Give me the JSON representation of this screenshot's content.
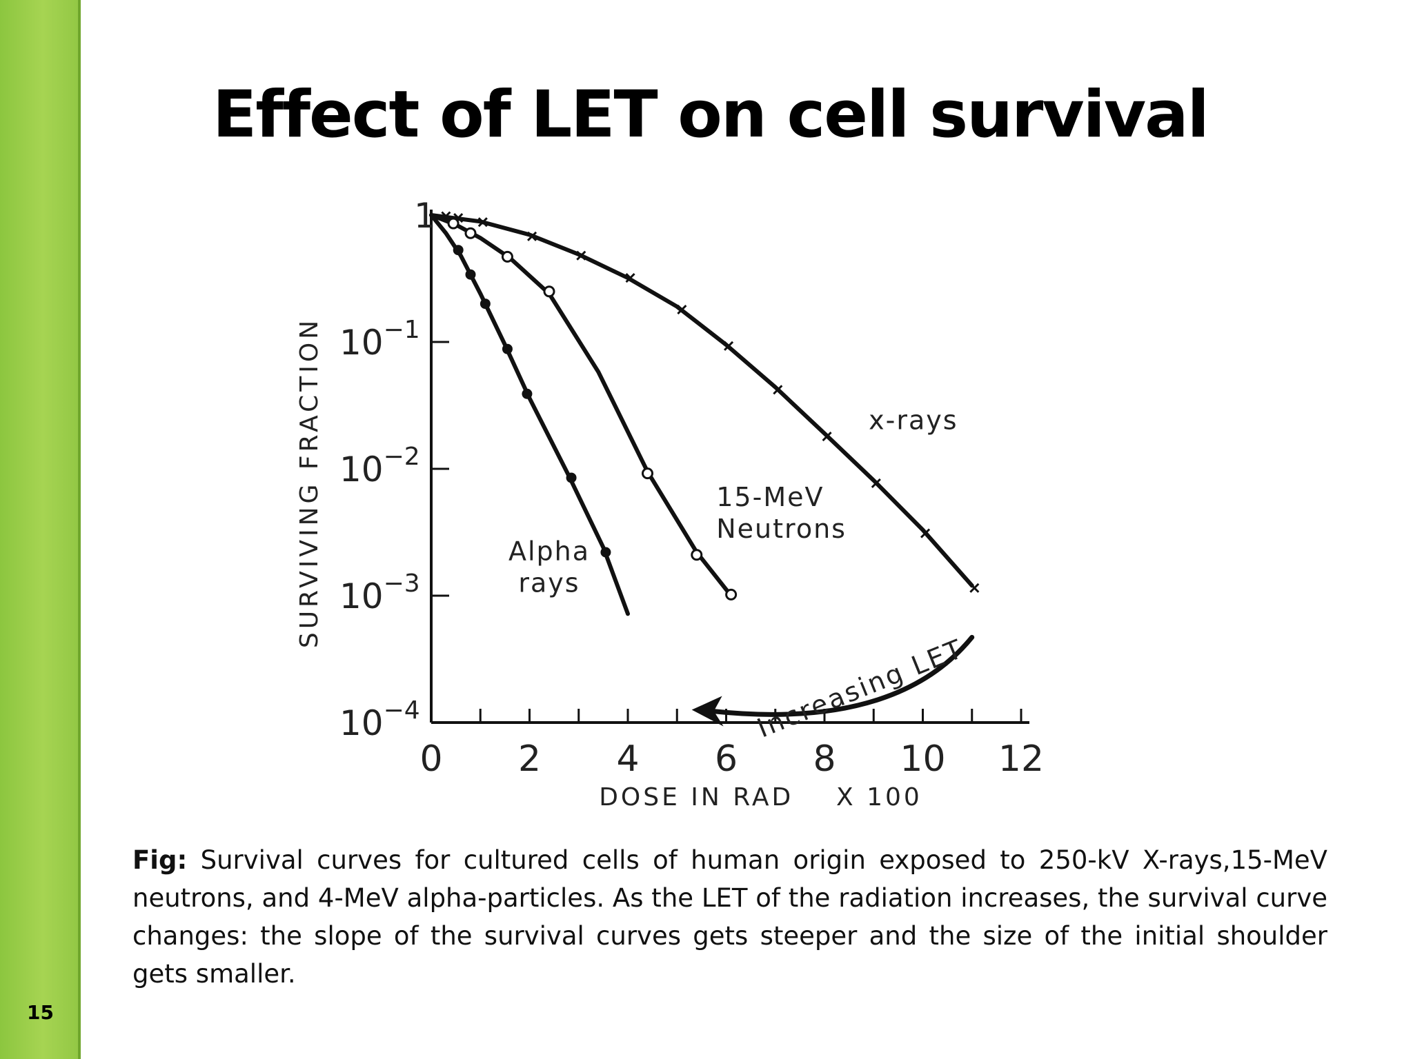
{
  "slide": {
    "title": "Effect of LET on cell survival",
    "number": "15",
    "caption_prefix": "Fig:",
    "caption_text": "Survival curves for cultured cells of human origin exposed to 250-kV X-rays,15-MeV neutrons, and 4-MeV alpha-particles. As the LET of the radiation increases, the survival curve changes: the slope of the survival curves gets steeper and the size of the initial shoulder gets smaller.",
    "accent_color": "#8cc63f"
  },
  "chart_data": {
    "type": "line",
    "xlabel": "DOSE IN RAD    X 100",
    "ylabel": "SURVIVING FRACTION",
    "xlim": [
      0,
      12
    ],
    "ylim": [
      0.0001,
      1
    ],
    "yscale": "log",
    "x_ticks": [
      "0",
      "2",
      "4",
      "6",
      "8",
      "10",
      "12"
    ],
    "y_ticks": [
      {
        "base": "1",
        "exp": ""
      },
      {
        "base": "10",
        "exp": "−1"
      },
      {
        "base": "10",
        "exp": "−2"
      },
      {
        "base": "10",
        "exp": "−3"
      },
      {
        "base": "10",
        "exp": "−4"
      }
    ],
    "grid": false,
    "series": [
      {
        "name": "x-rays",
        "marker": "x",
        "points": [
          [
            0.3,
            0.98
          ],
          [
            0.55,
            0.95
          ],
          [
            1.05,
            0.88
          ],
          [
            2.05,
            0.68
          ],
          [
            3.05,
            0.48
          ],
          [
            4.05,
            0.32
          ],
          [
            5.1,
            0.18
          ],
          [
            6.05,
            0.093
          ],
          [
            7.05,
            0.042
          ],
          [
            8.05,
            0.018
          ],
          [
            9.05,
            0.0077
          ],
          [
            10.05,
            0.0031
          ],
          [
            11.05,
            0.00115
          ]
        ],
        "curve": [
          [
            0,
            1
          ],
          [
            1,
            0.89
          ],
          [
            2,
            0.7
          ],
          [
            3,
            0.49
          ],
          [
            4,
            0.32
          ],
          [
            5,
            0.19
          ],
          [
            6,
            0.095
          ],
          [
            7,
            0.044
          ],
          [
            8,
            0.019
          ],
          [
            9,
            0.0081
          ],
          [
            10,
            0.0033
          ],
          [
            11,
            0.0012
          ]
        ],
        "label": "x-rays"
      },
      {
        "name": "15-MeV Neutrons",
        "marker": "open-circle",
        "points": [
          [
            0.45,
            0.86
          ],
          [
            0.8,
            0.72
          ],
          [
            1.55,
            0.47
          ],
          [
            2.4,
            0.25
          ],
          [
            4.4,
            0.0092
          ],
          [
            5.4,
            0.0021
          ],
          [
            6.1,
            0.00102
          ]
        ],
        "curve": [
          [
            0,
            1
          ],
          [
            0.5,
            0.84
          ],
          [
            1,
            0.66
          ],
          [
            1.6,
            0.46
          ],
          [
            2.4,
            0.24
          ],
          [
            3.4,
            0.058
          ],
          [
            4.4,
            0.0095
          ],
          [
            5.4,
            0.0022
          ],
          [
            6.1,
            0.001
          ]
        ],
        "label": "15-MeV\nNeutrons"
      },
      {
        "name": "Alpha rays",
        "marker": "filled-circle",
        "points": [
          [
            0.55,
            0.53
          ],
          [
            0.8,
            0.34
          ],
          [
            1.1,
            0.2
          ],
          [
            1.55,
            0.088
          ],
          [
            1.95,
            0.039
          ],
          [
            2.85,
            0.0085
          ],
          [
            3.55,
            0.0022
          ]
        ],
        "curve": [
          [
            0,
            1
          ],
          [
            0.3,
            0.72
          ],
          [
            0.6,
            0.48
          ],
          [
            1.0,
            0.24
          ],
          [
            1.5,
            0.095
          ],
          [
            2.0,
            0.036
          ],
          [
            2.8,
            0.0088
          ],
          [
            3.5,
            0.0024
          ],
          [
            4.0,
            0.00072
          ]
        ],
        "label": "Alpha\nrays"
      }
    ],
    "annotation": {
      "text": "Increasing LET",
      "arrow_from": [
        11,
        0.00047
      ],
      "arrow_to": [
        5.3,
        0.000126
      ]
    }
  }
}
